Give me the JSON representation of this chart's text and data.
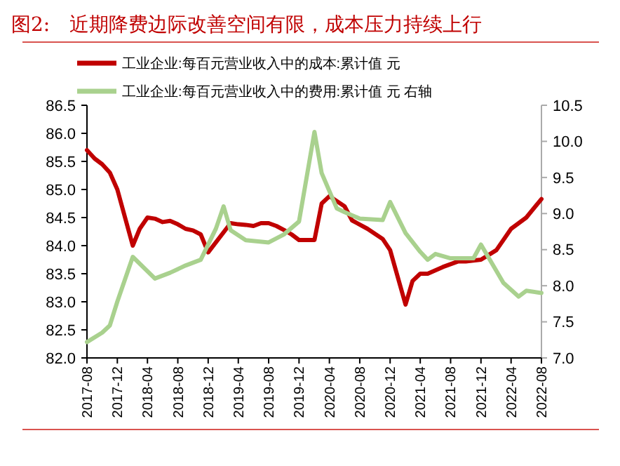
{
  "chart_data": {
    "type": "line",
    "title": "图2:　近期降费边际改善空间有限，成本压力持续上行",
    "legend": "top",
    "grid": false,
    "marker": "none",
    "line_style": "solid",
    "xlim": [
      "2017-08",
      "2022-08"
    ],
    "xticks": [
      "2017-08",
      "2017-12",
      "2018-04",
      "2018-08",
      "2018-12",
      "2019-04",
      "2019-08",
      "2019-12",
      "2020-04",
      "2020-08",
      "2020-12",
      "2021-04",
      "2021-08",
      "2021-12",
      "2022-04",
      "2022-08"
    ],
    "ylim": [
      82,
      86.5
    ],
    "yticks": [
      {
        "value": 82,
        "label": "82.0"
      },
      {
        "value": 82.5,
        "label": "82.5"
      },
      {
        "value": 83,
        "label": "83.0"
      },
      {
        "value": 83.5,
        "label": "83.5"
      },
      {
        "value": 84,
        "label": "84.0"
      },
      {
        "value": 84.5,
        "label": "84.5"
      },
      {
        "value": 85,
        "label": "85.0"
      },
      {
        "value": 85.5,
        "label": "85.5"
      },
      {
        "value": 86,
        "label": "86.0"
      },
      {
        "value": 86.5,
        "label": "86.5"
      }
    ],
    "y2lim": [
      7,
      10.5
    ],
    "y2ticks": [
      {
        "value": 7,
        "label": "7.0"
      },
      {
        "value": 7.5,
        "label": "7.5"
      },
      {
        "value": 8,
        "label": "8.0"
      },
      {
        "value": 8.5,
        "label": "8.5"
      },
      {
        "value": 9,
        "label": "9.0"
      },
      {
        "value": 9.5,
        "label": "9.5"
      },
      {
        "value": 10,
        "label": "10.0"
      },
      {
        "value": 10.5,
        "label": "10.5"
      }
    ],
    "series": [
      {
        "name": "工业企业:每百元营业收入中的成本:累计值 元",
        "color": "#c00000",
        "x": [
          "2017-08",
          "2017-09",
          "2017-10",
          "2017-11",
          "2017-12",
          "2018-02",
          "2018-03",
          "2018-04",
          "2018-05",
          "2018-06",
          "2018-07",
          "2018-08",
          "2018-09",
          "2018-10",
          "2018-11",
          "2018-12",
          "2019-03",
          "2019-04",
          "2019-05",
          "2019-06",
          "2019-07",
          "2019-08",
          "2019-09",
          "2019-10",
          "2019-11",
          "2019-12",
          "2020-02",
          "2020-03",
          "2020-04",
          "2020-06",
          "2020-07",
          "2020-09",
          "2020-11",
          "2020-12",
          "2021-02",
          "2021-03",
          "2021-04",
          "2021-05",
          "2021-07",
          "2021-09",
          "2021-10",
          "2021-12",
          "2022-02",
          "2022-04",
          "2022-06",
          "2022-08"
        ],
        "values": [
          85.7,
          85.55,
          85.45,
          85.3,
          85.0,
          84.0,
          84.3,
          84.5,
          84.48,
          84.42,
          84.44,
          84.38,
          84.3,
          84.27,
          84.2,
          83.88,
          84.4,
          84.38,
          84.37,
          84.35,
          84.4,
          84.4,
          84.35,
          84.28,
          84.2,
          84.1,
          84.1,
          84.75,
          84.88,
          84.7,
          84.45,
          84.3,
          84.12,
          83.92,
          82.95,
          83.37,
          83.5,
          83.5,
          83.62,
          83.72,
          83.72,
          83.75,
          83.92,
          84.3,
          84.5,
          84.83
        ]
      },
      {
        "name": "工业企业:每百元营业收入中的费用:累计值 元 右轴",
        "color": "#a9d18e",
        "axis": "y2",
        "x": [
          "2017-08",
          "2017-10",
          "2017-11",
          "2017-12",
          "2018-02",
          "2018-05",
          "2018-07",
          "2018-09",
          "2018-11",
          "2019-01",
          "2019-02",
          "2019-03",
          "2019-05",
          "2019-08",
          "2019-10",
          "2019-12",
          "2020-02",
          "2020-03",
          "2020-05",
          "2020-06",
          "2020-08",
          "2020-11",
          "2020-12",
          "2021-02",
          "2021-04",
          "2021-05",
          "2021-06",
          "2021-08",
          "2021-10",
          "2021-11",
          "2021-12",
          "2022-03",
          "2022-05",
          "2022-06",
          "2022-08"
        ],
        "values": [
          7.22,
          7.35,
          7.45,
          7.78,
          8.4,
          8.1,
          8.18,
          8.28,
          8.36,
          8.79,
          9.1,
          8.77,
          8.63,
          8.6,
          8.71,
          8.89,
          10.13,
          9.56,
          9.07,
          9.02,
          8.93,
          8.91,
          9.16,
          8.73,
          8.47,
          8.36,
          8.44,
          8.38,
          8.38,
          8.38,
          8.57,
          8.04,
          7.85,
          7.93,
          7.9
        ]
      }
    ]
  }
}
